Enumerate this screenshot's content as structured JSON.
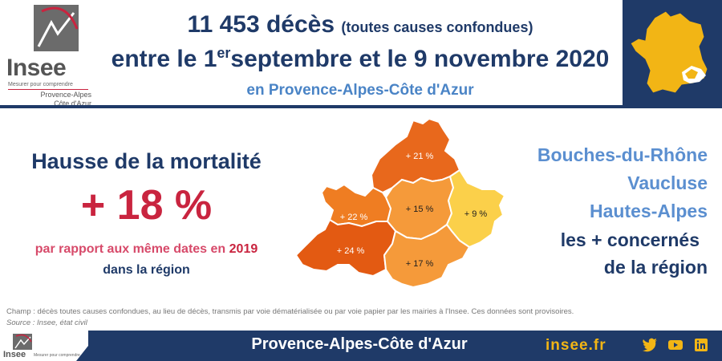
{
  "logo": {
    "name": "Insee",
    "tagline": "Mesurer pour comprendre",
    "region_line1": "Provence-Alpes",
    "region_line2": "Côte d'Azur"
  },
  "header": {
    "line1_main": "11 453 décès",
    "line1_small": "(toutes causes confondues)",
    "line2_a": "entre le 1",
    "line2_sup": "er",
    "line2_b": "septembre et le 9 novembre 2020",
    "line3": "en Provence-Alpes-Côte d'Azur"
  },
  "left_panel": {
    "heading": "Hausse de la mortalité",
    "value": "+ 18 %",
    "sub1_a": "par rapport aux même dates en",
    "sub1_b": "2019",
    "sub2": "dans la région"
  },
  "map_labels": {
    "hautes_alpes": "+ 21 %",
    "alpes_hp": "+ 15 %",
    "alpes_maritimes": "+ 9 %",
    "vaucluse": "+ 22 %",
    "bdr": "+ 24 %",
    "var": "+ 17 %"
  },
  "right_panel": {
    "dept1": "Bouches-du-Rhône",
    "dept2": "Vaucluse",
    "dept3": "Hautes-Alpes",
    "line4": "les + concernés",
    "line5": "de la région"
  },
  "notes": {
    "champ": "Champ : décès toutes causes confondues, au lieu de décès, transmis par voie dématérialisée ou par voie papier par les mairies à l'Insee. Ces données sont provisoires.",
    "source": "Source : Insee, état civil"
  },
  "footer": {
    "title": "Provence-Alpes-Côte d'Azur",
    "site": "insee.fr",
    "logo_text": "Insee",
    "logo_tag": "Mesurer pour comprendre"
  },
  "colors": {
    "navy": "#1f3a68",
    "red": "#c9243f",
    "light_blue": "#5b8fd0",
    "gold": "#f2b515"
  },
  "icons": [
    "twitter-icon",
    "youtube-icon",
    "linkedin-icon"
  ]
}
